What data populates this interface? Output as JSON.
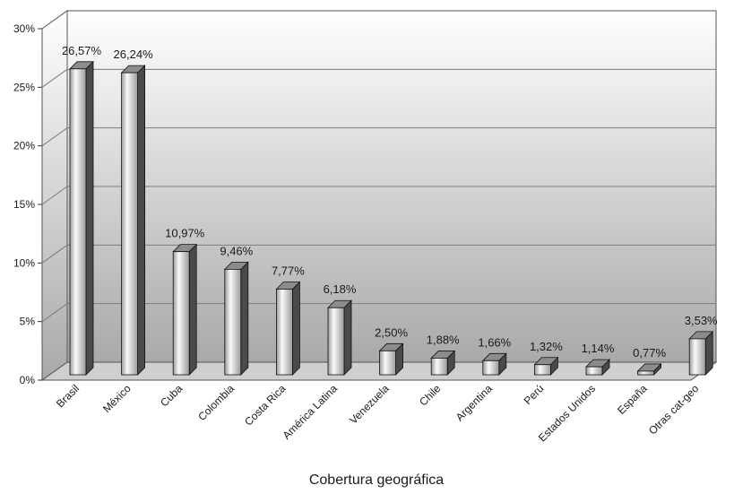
{
  "chart_data": {
    "type": "bar",
    "title": "",
    "xlabel": "Cobertura geográfica",
    "ylabel": "",
    "ylim": [
      0,
      30
    ],
    "yticks": [
      "0%",
      "5%",
      "10%",
      "15%",
      "20%",
      "25%",
      "30%"
    ],
    "grid": true,
    "legend": "none",
    "style": "3d-bars",
    "colors": {
      "bar_front_light": "#fafafa",
      "bar_front_dark": "#9a9a9a",
      "bar_side": "#4a4a4a",
      "bar_top": "#8c8c8c",
      "wall_top": "#ffffff",
      "wall_bottom": "#a9a9a9",
      "floor": "#cfcfcf",
      "grid": "#7d7d7d"
    },
    "categories": [
      "Brasil",
      "México",
      "Cuba",
      "Colombia",
      "Costa Rica",
      "América Latina",
      "Venezuela",
      "Chile",
      "Argentina",
      "Perú",
      "Estados Unidos",
      "España",
      "Otras cat-geo"
    ],
    "values": [
      26.57,
      26.24,
      10.97,
      9.46,
      7.77,
      6.18,
      2.5,
      1.88,
      1.66,
      1.32,
      1.14,
      0.77,
      3.53
    ],
    "data_labels": [
      "26,57%",
      "26,24%",
      "10,97%",
      "9,46%",
      "7,77%",
      "6,18%",
      "2,50%",
      "1,88%",
      "1,66%",
      "1,32%",
      "1,14%",
      "0,77%",
      "3,53%"
    ]
  }
}
